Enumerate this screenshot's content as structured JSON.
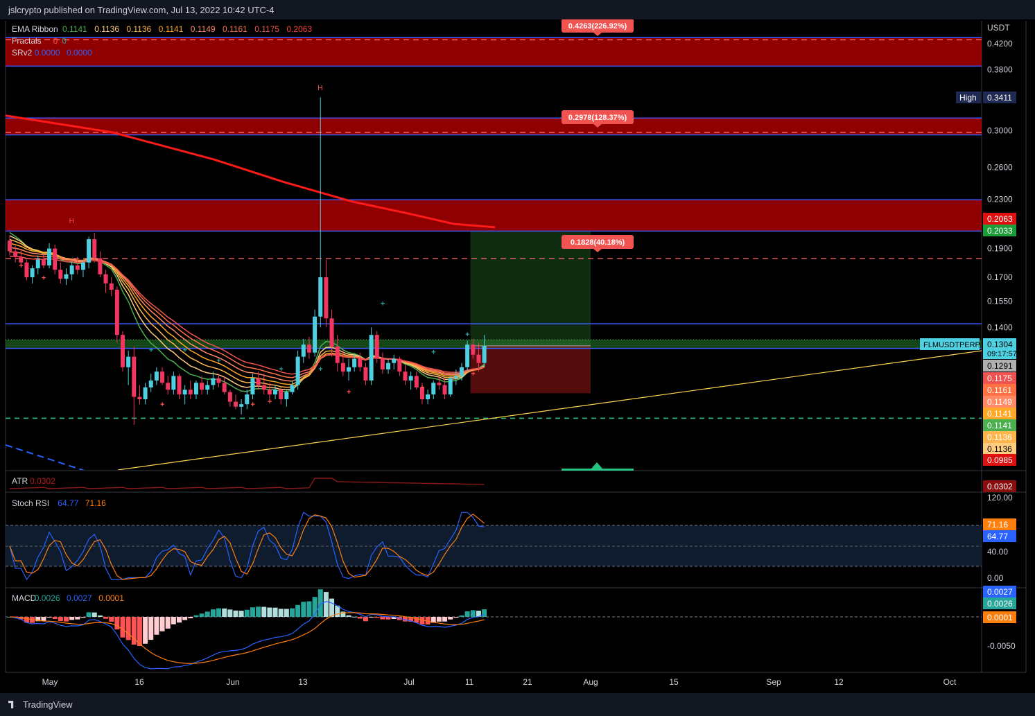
{
  "header": {
    "title": "jslcrypto published on TradingView.com, Jul 13, 2022 10:42 UTC-4"
  },
  "footer": {
    "brand": "TradingView"
  },
  "colors": {
    "up": "#4dd0e1",
    "down": "#f23661",
    "zone": "#a80000",
    "blue_line": "#2962ff",
    "trend": "#ffd54f"
  },
  "indicators": {
    "ema_ribbon": {
      "label": "EMA Ribbon",
      "values": [
        "0.1141",
        "0.1136",
        "0.1136",
        "0.1141",
        "0.1149",
        "0.1161",
        "0.1175",
        "0.2063"
      ],
      "colors": [
        "#4caf50",
        "#ffcc80",
        "#ffb74d",
        "#ffa726",
        "#ff8a65",
        "#ff7043",
        "#ef5350",
        "#f44336"
      ]
    },
    "fractals": {
      "label": "Fractals",
      "values": [
        "0",
        "0"
      ]
    },
    "srv2": {
      "label": "SRv2",
      "values": [
        "0.0000",
        "0.0000"
      ]
    },
    "atr": {
      "label": "ATR",
      "value": "0.0302"
    },
    "stoch_rsi": {
      "label": "Stoch RSI",
      "k": "64.77",
      "d": "71.16"
    },
    "macd": {
      "label": "MACD",
      "values": [
        "0.0026",
        "0.0027",
        "0.0001"
      ]
    }
  },
  "price_axis": {
    "unit": "USDT",
    "ticks": [
      "0.4200",
      "0.3800",
      "0.3000",
      "0.2600",
      "0.2300",
      "0.1900",
      "0.1700",
      "0.1550",
      "0.1400",
      "0.1291"
    ],
    "labels": [
      {
        "text": "High",
        "value": "0.3411",
        "bg": "#1e2a52"
      },
      {
        "text": "",
        "value": "0.2063",
        "bg": "#e01010"
      },
      {
        "text": "",
        "value": "0.2033",
        "bg": "#1b9e38"
      },
      {
        "text": "FLMUSDTPERP",
        "value": "0.1304",
        "sub": "09:17:57",
        "bg": "#4dd0e1"
      },
      {
        "text": "",
        "value": "0.1291",
        "bg": "#b0b0b0"
      },
      {
        "text": "",
        "value": "0.1175",
        "bg": "#ef5350"
      },
      {
        "text": "",
        "value": "0.1161",
        "bg": "#ff7043"
      },
      {
        "text": "",
        "value": "0.1149",
        "bg": "#ff8a65"
      },
      {
        "text": "",
        "value": "0.1141",
        "bg": "#ffa726"
      },
      {
        "text": "",
        "value": "0.1141",
        "bg": "#4caf50"
      },
      {
        "text": "",
        "value": "0.1136",
        "bg": "#ffb74d"
      },
      {
        "text": "",
        "value": "0.1136",
        "bg": "#ffcc80"
      },
      {
        "text": "",
        "value": "0.0985",
        "bg": "#e01010"
      }
    ],
    "atr_label": "0.0302",
    "stoch_ticks": [
      "120.00",
      "40.00",
      "0.00"
    ],
    "stoch_labels": [
      "71.16",
      "64.77"
    ],
    "macd_ticks": [
      "-0.0050"
    ],
    "macd_labels": [
      "0.0027",
      "0.0026",
      "0.0001"
    ]
  },
  "targets": [
    "0.4263(226.92%)",
    "0.2978(128.37%)",
    "0.1828(40.18%)"
  ],
  "time_axis": [
    "May",
    "16",
    "Jun",
    "13",
    "Jul",
    "11",
    "21",
    "Aug",
    "15",
    "Sep",
    "12",
    "Oct"
  ],
  "chart_data": {
    "type": "line",
    "title": "",
    "symbol": "FLMUSDTPERP",
    "y_scale": "log",
    "ylim": [
      0.095,
      0.45
    ],
    "time_axis": [
      "May",
      "16",
      "Jun",
      "13",
      "Jul",
      "11",
      "21",
      "Aug",
      "15",
      "Sep",
      "12",
      "Oct"
    ],
    "last_price": 0.1304,
    "high": 0.3411,
    "resistance_zones": [
      [
        0.385,
        0.43
      ],
      [
        0.295,
        0.315
      ],
      [
        0.2033,
        0.2295
      ],
      [
        0.1291,
        0.1335
      ]
    ],
    "horizontal_levels": [
      0.4263,
      0.2978,
      0.1828,
      0.142,
      0.1291,
      0.0985
    ],
    "ema200_path": [
      [
        1,
        0.318
      ],
      [
        15,
        0.298
      ],
      [
        30,
        0.268
      ],
      [
        40,
        0.246
      ],
      [
        50,
        0.228
      ],
      [
        58,
        0.218
      ],
      [
        65,
        0.209
      ],
      [
        71,
        0.2063
      ]
    ],
    "position": {
      "entry": 0.1304,
      "target": 0.2033,
      "stop": 0.1085
    },
    "series_note": "daily candles, approx.",
    "candles": [
      [
        0.196,
        0.2,
        0.185,
        0.188
      ],
      [
        0.188,
        0.192,
        0.18,
        0.184
      ],
      [
        0.184,
        0.189,
        0.178,
        0.18
      ],
      [
        0.18,
        0.182,
        0.168,
        0.17
      ],
      [
        0.17,
        0.178,
        0.166,
        0.176
      ],
      [
        0.176,
        0.185,
        0.172,
        0.182
      ],
      [
        0.182,
        0.186,
        0.176,
        0.178
      ],
      [
        0.178,
        0.194,
        0.176,
        0.19
      ],
      [
        0.19,
        0.193,
        0.172,
        0.175
      ],
      [
        0.175,
        0.18,
        0.166,
        0.169
      ],
      [
        0.169,
        0.176,
        0.165,
        0.172
      ],
      [
        0.172,
        0.181,
        0.168,
        0.178
      ],
      [
        0.178,
        0.184,
        0.172,
        0.175
      ],
      [
        0.175,
        0.182,
        0.17,
        0.18
      ],
      [
        0.18,
        0.199,
        0.176,
        0.197
      ],
      [
        0.197,
        0.202,
        0.18,
        0.183
      ],
      [
        0.183,
        0.188,
        0.17,
        0.172
      ],
      [
        0.172,
        0.175,
        0.16,
        0.166
      ],
      [
        0.166,
        0.17,
        0.158,
        0.162
      ],
      [
        0.162,
        0.164,
        0.132,
        0.136
      ],
      [
        0.136,
        0.138,
        0.118,
        0.12
      ],
      [
        0.12,
        0.128,
        0.112,
        0.125
      ],
      [
        0.125,
        0.13,
        0.096,
        0.107
      ],
      [
        0.107,
        0.112,
        0.104,
        0.106
      ],
      [
        0.106,
        0.113,
        0.104,
        0.111
      ],
      [
        0.111,
        0.117,
        0.109,
        0.114
      ],
      [
        0.114,
        0.12,
        0.112,
        0.118
      ],
      [
        0.118,
        0.12,
        0.112,
        0.113
      ],
      [
        0.113,
        0.116,
        0.108,
        0.11
      ],
      [
        0.11,
        0.118,
        0.108,
        0.116
      ],
      [
        0.116,
        0.117,
        0.106,
        0.108
      ],
      [
        0.108,
        0.112,
        0.104,
        0.11
      ],
      [
        0.11,
        0.114,
        0.106,
        0.108
      ],
      [
        0.108,
        0.114,
        0.106,
        0.113
      ],
      [
        0.113,
        0.116,
        0.108,
        0.11
      ],
      [
        0.11,
        0.114,
        0.108,
        0.112
      ],
      [
        0.112,
        0.118,
        0.11,
        0.115
      ],
      [
        0.115,
        0.117,
        0.111,
        0.113
      ],
      [
        0.113,
        0.116,
        0.108,
        0.109
      ],
      [
        0.109,
        0.11,
        0.103,
        0.105
      ],
      [
        0.105,
        0.108,
        0.102,
        0.103
      ],
      [
        0.103,
        0.106,
        0.1,
        0.104
      ],
      [
        0.104,
        0.11,
        0.102,
        0.108
      ],
      [
        0.108,
        0.117,
        0.106,
        0.115
      ],
      [
        0.115,
        0.118,
        0.11,
        0.112
      ],
      [
        0.112,
        0.117,
        0.108,
        0.11
      ],
      [
        0.11,
        0.113,
        0.105,
        0.108
      ],
      [
        0.108,
        0.112,
        0.106,
        0.11
      ],
      [
        0.11,
        0.111,
        0.104,
        0.106
      ],
      [
        0.106,
        0.11,
        0.103,
        0.109
      ],
      [
        0.109,
        0.114,
        0.108,
        0.112
      ],
      [
        0.112,
        0.128,
        0.11,
        0.125
      ],
      [
        0.125,
        0.134,
        0.122,
        0.131
      ],
      [
        0.131,
        0.135,
        0.124,
        0.127
      ],
      [
        0.127,
        0.15,
        0.125,
        0.146
      ],
      [
        0.146,
        0.3411,
        0.14,
        0.17
      ],
      [
        0.17,
        0.182,
        0.14,
        0.145
      ],
      [
        0.145,
        0.15,
        0.125,
        0.13
      ],
      [
        0.13,
        0.136,
        0.118,
        0.122
      ],
      [
        0.122,
        0.128,
        0.116,
        0.118
      ],
      [
        0.118,
        0.124,
        0.114,
        0.12
      ],
      [
        0.12,
        0.126,
        0.118,
        0.124
      ],
      [
        0.124,
        0.127,
        0.118,
        0.12
      ],
      [
        0.12,
        0.122,
        0.112,
        0.114
      ],
      [
        0.114,
        0.14,
        0.112,
        0.136
      ],
      [
        0.136,
        0.138,
        0.122,
        0.124
      ],
      [
        0.124,
        0.127,
        0.117,
        0.119
      ],
      [
        0.119,
        0.124,
        0.117,
        0.122
      ],
      [
        0.122,
        0.126,
        0.119,
        0.124
      ],
      [
        0.124,
        0.125,
        0.116,
        0.118
      ],
      [
        0.118,
        0.121,
        0.112,
        0.114
      ],
      [
        0.114,
        0.118,
        0.11,
        0.116
      ],
      [
        0.116,
        0.118,
        0.11,
        0.111
      ],
      [
        0.111,
        0.113,
        0.104,
        0.106
      ],
      [
        0.106,
        0.11,
        0.104,
        0.108
      ],
      [
        0.108,
        0.114,
        0.106,
        0.113
      ],
      [
        0.113,
        0.116,
        0.11,
        0.112
      ],
      [
        0.112,
        0.115,
        0.106,
        0.108
      ],
      [
        0.108,
        0.116,
        0.107,
        0.115
      ],
      [
        0.115,
        0.119,
        0.112,
        0.116
      ],
      [
        0.116,
        0.122,
        0.114,
        0.12
      ],
      [
        0.12,
        0.133,
        0.118,
        0.131
      ],
      [
        0.131,
        0.134,
        0.124,
        0.126
      ],
      [
        0.126,
        0.132,
        0.118,
        0.122
      ],
      [
        0.122,
        0.136,
        0.12,
        0.1304
      ]
    ]
  }
}
